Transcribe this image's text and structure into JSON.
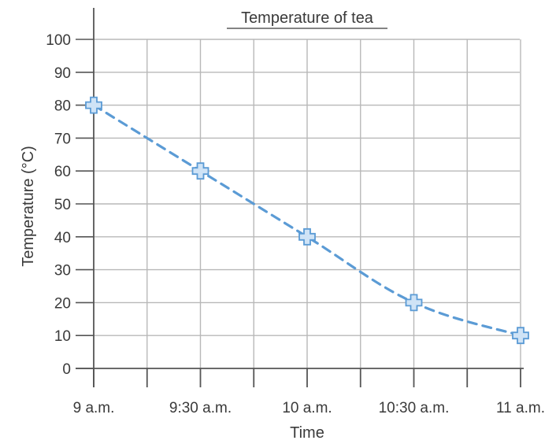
{
  "chart_data": {
    "type": "line",
    "title": "Temperature of tea",
    "xlabel": "Time",
    "ylabel": "Temperature (°C)",
    "categories": [
      "9 a.m.",
      "9:30 a.m.",
      "10 a.m.",
      "10:30 a.m.",
      "11 a.m."
    ],
    "series": [
      {
        "values": [
          80,
          60,
          40,
          20,
          10
        ]
      }
    ],
    "y_ticks": [
      0,
      10,
      20,
      30,
      40,
      50,
      60,
      70,
      80,
      90,
      100
    ],
    "ylim": [
      0,
      100
    ],
    "grid": true,
    "line_style": "dashed",
    "marker": "cross",
    "colors": {
      "line": "#5b9bd5",
      "marker_fill": "#cfe3f6",
      "grid": "#b8b8b8",
      "axis": "#555555",
      "text": "#3a3a3a"
    }
  }
}
